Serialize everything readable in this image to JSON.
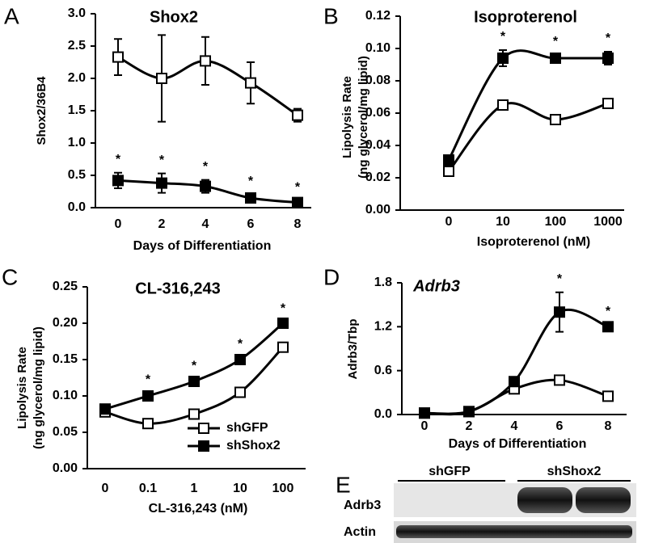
{
  "chart_data": [
    {
      "type": "line",
      "panel": "A",
      "title": "Shox2",
      "y_label": [
        "Shox2/36B4"
      ],
      "x_label": "Days of Differentiation",
      "categories": [
        "0",
        "2",
        "4",
        "6",
        "8"
      ],
      "ylim": [
        0,
        3
      ],
      "yticks": [
        {
          "value": 0,
          "label": "0.0"
        },
        0.5,
        {
          "value": 1,
          "label": "1.0"
        },
        1.5,
        {
          "value": 2,
          "label": "2.0"
        },
        2.5,
        {
          "value": 3,
          "label": "3.0"
        }
      ],
      "series": [
        {
          "marker": "open-square",
          "color": "#000000",
          "values": [
            2.33,
            2.0,
            2.27,
            1.93,
            1.43
          ],
          "errors": [
            0.28,
            0.67,
            0.37,
            0.32,
            0.1
          ]
        },
        {
          "marker": "filled-square",
          "color": "#000000",
          "values": [
            0.42,
            0.38,
            0.33,
            0.15,
            0.08
          ],
          "errors": [
            0.12,
            0.15,
            0.1,
            0.05,
            0.03
          ]
        }
      ],
      "significance": [
        "*",
        "*",
        "*",
        "*",
        "*"
      ],
      "significance_series": 1
    },
    {
      "type": "line",
      "panel": "B",
      "title": "Isoproterenol",
      "y_label": [
        "Lipolysis Rate",
        "(ng glycerol/mg lipid)"
      ],
      "x_label": "Isoproterenol (nM)",
      "categories": [
        "0",
        "10",
        "100",
        "1000"
      ],
      "ylim": [
        0,
        0.12
      ],
      "yticks": [
        {
          "value": 0,
          "label": "0.00"
        },
        0.02,
        0.04,
        0.06,
        0.08,
        {
          "value": 0.1,
          "label": "0.10"
        },
        0.12
      ],
      "series": [
        {
          "marker": "open-square",
          "color": "#000000",
          "values": [
            0.024,
            0.065,
            0.056,
            0.066
          ],
          "errors": [
            0.002,
            0.002,
            0.002,
            0.003
          ]
        },
        {
          "marker": "filled-square",
          "color": "#000000",
          "values": [
            0.031,
            0.094,
            0.094,
            0.094
          ],
          "errors": [
            0.003,
            0.005,
            0.002,
            0.004
          ]
        }
      ],
      "significance": [
        null,
        "*",
        "*",
        "*"
      ],
      "significance_series": 1
    },
    {
      "type": "line",
      "panel": "C",
      "title": "CL-316,243",
      "y_label": [
        "Lipolysis Rate",
        "(ng glycerol/mg lipid)"
      ],
      "x_label": "CL-316,243 (nM)",
      "categories": [
        "0",
        "0.1",
        "1",
        "10",
        "100"
      ],
      "ylim": [
        0,
        0.25
      ],
      "yticks": [
        {
          "value": 0,
          "label": "0.00"
        },
        0.05,
        {
          "value": 0.1,
          "label": "0.10"
        },
        0.15,
        {
          "value": 0.2,
          "label": "0.20"
        },
        0.25
      ],
      "series": [
        {
          "name": "shGFP",
          "marker": "open-square",
          "color": "#000000",
          "values": [
            0.078,
            0.062,
            0.075,
            0.105,
            0.167
          ],
          "errors": [
            0.003,
            0.002,
            0.002,
            0.002,
            0.002
          ]
        },
        {
          "name": "shShox2",
          "marker": "filled-square",
          "color": "#000000",
          "values": [
            0.082,
            0.1,
            0.12,
            0.15,
            0.2
          ],
          "errors": [
            0.003,
            0.004,
            0.003,
            0.003,
            0.002
          ]
        }
      ],
      "legend": "lower right",
      "significance": [
        null,
        "*",
        "*",
        "*",
        "*"
      ],
      "significance_series": 1
    },
    {
      "type": "line",
      "panel": "D",
      "title": "Adrb3",
      "title_italic": true,
      "y_label": [
        "Adrb3/Tbp"
      ],
      "x_label": "Days of Differentiation",
      "categories": [
        "0",
        "2",
        "4",
        "6",
        "8"
      ],
      "ylim": [
        0,
        1.8
      ],
      "yticks": [
        {
          "value": 0,
          "label": "0.0"
        },
        0.6,
        1.2,
        1.8
      ],
      "series": [
        {
          "marker": "open-square",
          "color": "#000000",
          "values": [
            0.02,
            0.04,
            0.35,
            0.47,
            0.25
          ],
          "errors": [
            0,
            0,
            0.02,
            0.02,
            0.02
          ]
        },
        {
          "marker": "filled-square",
          "color": "#000000",
          "values": [
            0.02,
            0.04,
            0.45,
            1.4,
            1.2
          ],
          "errors": [
            0,
            0,
            0.03,
            0.27,
            0.03
          ]
        }
      ],
      "significance": [
        null,
        null,
        null,
        "*",
        "*"
      ],
      "significance_series": 1
    }
  ],
  "blot": {
    "panel": "E",
    "groups": [
      "shGFP",
      "shShox2"
    ],
    "rows": [
      "Adrb3",
      "Actin"
    ]
  }
}
